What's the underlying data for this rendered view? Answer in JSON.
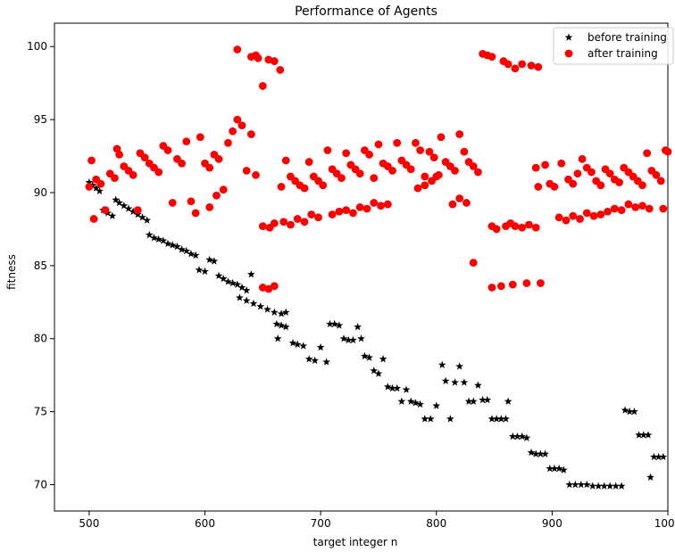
{
  "chart_data": {
    "type": "scatter",
    "title": "Performance of Agents",
    "xlabel": "target integer n",
    "ylabel": "fitness",
    "xlim": [
      470,
      1000
    ],
    "ylim": [
      68.2,
      101.6
    ],
    "xticks": [
      500,
      600,
      700,
      800,
      900,
      1000
    ],
    "yticks": [
      70,
      75,
      80,
      85,
      90,
      95,
      100
    ],
    "grid": false,
    "legend_position": "top-right",
    "series": [
      {
        "name": "before training",
        "marker": "star",
        "color": "#000000",
        "points": [
          [
            500,
            90.7
          ],
          [
            503,
            90.5
          ],
          [
            506,
            90.3
          ],
          [
            509,
            90.1
          ],
          [
            512,
            88.8
          ],
          [
            516,
            88.6
          ],
          [
            520,
            88.4
          ],
          [
            523,
            89.5
          ],
          [
            526,
            89.3
          ],
          [
            530,
            89.1
          ],
          [
            534,
            88.9
          ],
          [
            538,
            88.7
          ],
          [
            542,
            88.5
          ],
          [
            546,
            88.3
          ],
          [
            550,
            88.1
          ],
          [
            552,
            87.1
          ],
          [
            556,
            86.9
          ],
          [
            560,
            86.8
          ],
          [
            564,
            86.7
          ],
          [
            568,
            86.5
          ],
          [
            572,
            86.4
          ],
          [
            576,
            86.3
          ],
          [
            580,
            86.1
          ],
          [
            584,
            86.0
          ],
          [
            588,
            85.8
          ],
          [
            592,
            85.7
          ],
          [
            595,
            84.7
          ],
          [
            600,
            84.6
          ],
          [
            604,
            85.4
          ],
          [
            608,
            85.3
          ],
          [
            612,
            84.3
          ],
          [
            616,
            84.1
          ],
          [
            620,
            83.9
          ],
          [
            624,
            83.8
          ],
          [
            628,
            83.7
          ],
          [
            632,
            83.5
          ],
          [
            636,
            83.3
          ],
          [
            640,
            84.4
          ],
          [
            630,
            82.8
          ],
          [
            636,
            82.6
          ],
          [
            642,
            82.4
          ],
          [
            648,
            82.2
          ],
          [
            654,
            82.0
          ],
          [
            660,
            81.8
          ],
          [
            666,
            81.7
          ],
          [
            670,
            81.8
          ],
          [
            662,
            81.0
          ],
          [
            666,
            80.9
          ],
          [
            670,
            80.8
          ],
          [
            663,
            80.0
          ],
          [
            676,
            79.7
          ],
          [
            680,
            79.6
          ],
          [
            685,
            79.5
          ],
          [
            690,
            78.6
          ],
          [
            695,
            78.5
          ],
          [
            700,
            79.4
          ],
          [
            705,
            78.4
          ],
          [
            708,
            81.0
          ],
          [
            712,
            81.0
          ],
          [
            716,
            80.9
          ],
          [
            720,
            80.0
          ],
          [
            724,
            79.9
          ],
          [
            728,
            79.9
          ],
          [
            732,
            80.8
          ],
          [
            735,
            80.0
          ],
          [
            738,
            78.8
          ],
          [
            742,
            78.7
          ],
          [
            746,
            77.8
          ],
          [
            750,
            77.6
          ],
          [
            754,
            78.6
          ],
          [
            758,
            76.7
          ],
          [
            762,
            76.6
          ],
          [
            766,
            76.6
          ],
          [
            770,
            75.7
          ],
          [
            774,
            76.5
          ],
          [
            778,
            75.7
          ],
          [
            782,
            75.6
          ],
          [
            786,
            75.5
          ],
          [
            790,
            74.5
          ],
          [
            795,
            74.5
          ],
          [
            800,
            75.4
          ],
          [
            805,
            78.2
          ],
          [
            808,
            77.1
          ],
          [
            812,
            74.5
          ],
          [
            816,
            77.0
          ],
          [
            820,
            78.1
          ],
          [
            824,
            77.0
          ],
          [
            828,
            75.7
          ],
          [
            832,
            75.7
          ],
          [
            836,
            76.8
          ],
          [
            840,
            75.8
          ],
          [
            844,
            75.8
          ],
          [
            848,
            74.5
          ],
          [
            852,
            74.5
          ],
          [
            856,
            74.5
          ],
          [
            860,
            74.5
          ],
          [
            862,
            75.7
          ],
          [
            866,
            73.3
          ],
          [
            870,
            73.3
          ],
          [
            874,
            73.3
          ],
          [
            878,
            73.2
          ],
          [
            882,
            72.2
          ],
          [
            886,
            72.1
          ],
          [
            890,
            72.1
          ],
          [
            894,
            72.1
          ],
          [
            898,
            71.1
          ],
          [
            902,
            71.1
          ],
          [
            906,
            71.1
          ],
          [
            910,
            71.0
          ],
          [
            915,
            70.0
          ],
          [
            920,
            70.0
          ],
          [
            925,
            70.0
          ],
          [
            930,
            70.0
          ],
          [
            935,
            69.9
          ],
          [
            940,
            69.9
          ],
          [
            945,
            69.9
          ],
          [
            950,
            69.9
          ],
          [
            955,
            69.9
          ],
          [
            960,
            69.9
          ],
          [
            963,
            75.1
          ],
          [
            967,
            75.0
          ],
          [
            971,
            75.0
          ],
          [
            975,
            73.4
          ],
          [
            979,
            73.4
          ],
          [
            983,
            73.4
          ],
          [
            985,
            70.5
          ],
          [
            988,
            71.9
          ],
          [
            992,
            71.9
          ],
          [
            996,
            71.9
          ]
        ]
      },
      {
        "name": "after training",
        "marker": "circle",
        "color": "#ff0000",
        "points": [
          [
            500,
            90.4
          ],
          [
            502,
            92.2
          ],
          [
            504,
            88.2
          ],
          [
            506,
            90.9
          ],
          [
            510,
            90.6
          ],
          [
            514,
            88.8
          ],
          [
            518,
            91.3
          ],
          [
            522,
            91.0
          ],
          [
            524,
            93.0
          ],
          [
            526,
            92.6
          ],
          [
            530,
            91.8
          ],
          [
            534,
            91.5
          ],
          [
            538,
            91.2
          ],
          [
            542,
            88.8
          ],
          [
            544,
            92.7
          ],
          [
            548,
            92.4
          ],
          [
            552,
            92.0
          ],
          [
            556,
            91.7
          ],
          [
            560,
            91.4
          ],
          [
            564,
            93.2
          ],
          [
            568,
            92.9
          ],
          [
            572,
            89.3
          ],
          [
            576,
            92.3
          ],
          [
            580,
            92.0
          ],
          [
            584,
            93.5
          ],
          [
            588,
            89.4
          ],
          [
            592,
            88.6
          ],
          [
            596,
            93.8
          ],
          [
            600,
            92.0
          ],
          [
            604,
            91.7
          ],
          [
            608,
            92.6
          ],
          [
            612,
            92.3
          ],
          [
            616,
            90.2
          ],
          [
            604,
            89.0
          ],
          [
            610,
            89.8
          ],
          [
            620,
            93.4
          ],
          [
            624,
            94.2
          ],
          [
            628,
            95.0
          ],
          [
            632,
            94.6
          ],
          [
            636,
            91.5
          ],
          [
            640,
            94.0
          ],
          [
            644,
            91.2
          ],
          [
            628,
            99.8
          ],
          [
            640,
            99.3
          ],
          [
            644,
            99.4
          ],
          [
            646,
            99.2
          ],
          [
            650,
            97.3
          ],
          [
            655,
            99.1
          ],
          [
            660,
            99.0
          ],
          [
            665,
            98.4
          ],
          [
            650,
            83.5
          ],
          [
            655,
            83.4
          ],
          [
            660,
            83.6
          ],
          [
            650,
            87.7
          ],
          [
            656,
            87.6
          ],
          [
            660,
            87.9
          ],
          [
            668,
            88.0
          ],
          [
            674,
            87.8
          ],
          [
            680,
            88.2
          ],
          [
            686,
            88.0
          ],
          [
            692,
            88.5
          ],
          [
            698,
            88.3
          ],
          [
            666,
            90.4
          ],
          [
            670,
            92.2
          ],
          [
            674,
            91.1
          ],
          [
            678,
            90.8
          ],
          [
            682,
            90.5
          ],
          [
            686,
            90.3
          ],
          [
            690,
            92.1
          ],
          [
            694,
            91.1
          ],
          [
            698,
            90.8
          ],
          [
            702,
            90.5
          ],
          [
            706,
            92.9
          ],
          [
            710,
            91.6
          ],
          [
            714,
            91.3
          ],
          [
            718,
            91.0
          ],
          [
            722,
            92.7
          ],
          [
            726,
            91.9
          ],
          [
            730,
            91.6
          ],
          [
            734,
            91.3
          ],
          [
            738,
            92.9
          ],
          [
            742,
            92.6
          ],
          [
            746,
            91.0
          ],
          [
            750,
            93.3
          ],
          [
            754,
            92.0
          ],
          [
            758,
            91.8
          ],
          [
            762,
            91.5
          ],
          [
            766,
            93.4
          ],
          [
            770,
            92.2
          ],
          [
            774,
            91.9
          ],
          [
            778,
            91.6
          ],
          [
            782,
            93.4
          ],
          [
            786,
            92.9
          ],
          [
            790,
            91.1
          ],
          [
            794,
            92.8
          ],
          [
            798,
            92.4
          ],
          [
            800,
            91.1
          ],
          [
            710,
            88.5
          ],
          [
            716,
            88.7
          ],
          [
            722,
            88.8
          ],
          [
            728,
            88.6
          ],
          [
            734,
            89.0
          ],
          [
            740,
            88.9
          ],
          [
            746,
            89.3
          ],
          [
            752,
            89.1
          ],
          [
            758,
            89.2
          ],
          [
            784,
            90.3
          ],
          [
            790,
            90.5
          ],
          [
            796,
            90.8
          ],
          [
            802,
            91.2
          ],
          [
            804,
            93.8
          ],
          [
            808,
            92.1
          ],
          [
            812,
            91.8
          ],
          [
            816,
            91.5
          ],
          [
            820,
            94.0
          ],
          [
            824,
            92.8
          ],
          [
            828,
            92.1
          ],
          [
            832,
            91.8
          ],
          [
            836,
            91.4
          ],
          [
            814,
            89.2
          ],
          [
            820,
            89.6
          ],
          [
            826,
            89.3
          ],
          [
            832,
            85.2
          ],
          [
            840,
            99.5
          ],
          [
            844,
            99.4
          ],
          [
            848,
            99.3
          ],
          [
            858,
            99.0
          ],
          [
            862,
            98.8
          ],
          [
            868,
            98.5
          ],
          [
            874,
            98.8
          ],
          [
            882,
            98.7
          ],
          [
            888,
            98.6
          ],
          [
            848,
            83.5
          ],
          [
            856,
            83.6
          ],
          [
            866,
            83.7
          ],
          [
            878,
            83.8
          ],
          [
            890,
            83.8
          ],
          [
            848,
            87.7
          ],
          [
            852,
            87.5
          ],
          [
            860,
            87.7
          ],
          [
            864,
            87.9
          ],
          [
            868,
            87.7
          ],
          [
            874,
            87.6
          ],
          [
            880,
            87.8
          ],
          [
            886,
            87.6
          ],
          [
            886,
            91.7
          ],
          [
            888,
            90.4
          ],
          [
            894,
            91.9
          ],
          [
            898,
            90.6
          ],
          [
            902,
            90.4
          ],
          [
            908,
            92.0
          ],
          [
            914,
            90.9
          ],
          [
            918,
            90.6
          ],
          [
            922,
            91.3
          ],
          [
            926,
            92.3
          ],
          [
            930,
            91.7
          ],
          [
            934,
            91.4
          ],
          [
            938,
            90.8
          ],
          [
            942,
            90.5
          ],
          [
            946,
            91.6
          ],
          [
            950,
            91.3
          ],
          [
            954,
            90.9
          ],
          [
            958,
            90.7
          ],
          [
            962,
            91.7
          ],
          [
            966,
            91.4
          ],
          [
            970,
            91.1
          ],
          [
            974,
            90.8
          ],
          [
            978,
            90.5
          ],
          [
            982,
            92.7
          ],
          [
            986,
            91.5
          ],
          [
            990,
            91.2
          ],
          [
            994,
            90.8
          ],
          [
            998,
            92.9
          ],
          [
            1000,
            92.8
          ],
          [
            906,
            88.3
          ],
          [
            912,
            88.1
          ],
          [
            918,
            88.4
          ],
          [
            924,
            88.2
          ],
          [
            930,
            88.6
          ],
          [
            936,
            88.4
          ],
          [
            942,
            88.5
          ],
          [
            948,
            88.7
          ],
          [
            954,
            88.9
          ],
          [
            960,
            88.8
          ],
          [
            966,
            89.2
          ],
          [
            972,
            89.0
          ],
          [
            978,
            89.1
          ],
          [
            984,
            88.9
          ],
          [
            996,
            88.9
          ]
        ]
      }
    ]
  }
}
